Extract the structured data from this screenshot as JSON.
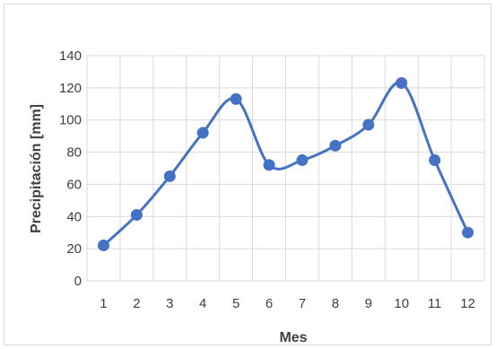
{
  "chart_data": {
    "type": "line",
    "title": "",
    "xlabel": "Mes",
    "ylabel": "Precipitación [mm]",
    "x": [
      1,
      2,
      3,
      4,
      5,
      6,
      7,
      8,
      9,
      10,
      11,
      12
    ],
    "series": [
      {
        "values": [
          22,
          41,
          65,
          92,
          113,
          72,
          75,
          84,
          97,
          123,
          75,
          30
        ],
        "color": "#4472c4"
      }
    ],
    "ylim": [
      0,
      140
    ],
    "yticks": [
      0,
      20,
      40,
      60,
      80,
      100,
      120,
      140
    ],
    "xticks": [
      1,
      2,
      3,
      4,
      5,
      6,
      7,
      8,
      9,
      10,
      11,
      12
    ],
    "grid": true,
    "smooth": true,
    "markers": "circle"
  }
}
